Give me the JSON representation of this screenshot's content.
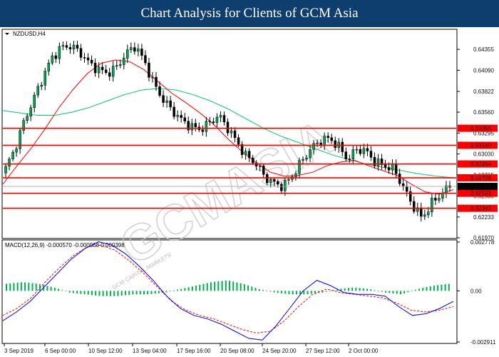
{
  "banner": {
    "title": "Chart Analysis for Clients of GCM Asia"
  },
  "watermark": "GCMASIA",
  "watermark_sub": "GCM CAPITAL MARKETS",
  "colors": {
    "banner": "#0e3e6e",
    "support_resistance": "#ff0000",
    "ma_fast": "#ff0000",
    "ma_slow": "#00cc66",
    "bull": "#00a650",
    "bear": "#000000",
    "macd_line": "#0000ff",
    "signal_line": "#ff0000",
    "histogram": "#00b050"
  },
  "chart_data": [
    {
      "type": "candlestick",
      "symbol_label": "NZDUSD,H4",
      "ylim": [
        0.6197,
        0.646
      ],
      "y_ticks": [
        "0.64355",
        "0.64090",
        "0.63822",
        "0.63560",
        "0.63295",
        "0.63030",
        "0.62765",
        "0.62500",
        "0.62233",
        "0.61970"
      ],
      "x_ticks": [
        "3 Sep 2019",
        "6 Sep 00:00",
        "10 Sep 12:00",
        "13 Sep 04:00",
        "17 Sep 16:00",
        "20 Sep 08:00",
        "24 Sep 20:00",
        "27 Sep 12:00",
        "2 Oct 00:00"
      ],
      "levels": [
        {
          "value": 0.63356,
          "label": "0.63356"
        },
        {
          "value": 0.6314,
          "label": "0.63140"
        },
        {
          "value": 0.62904,
          "label": "0.62904"
        },
        {
          "value": 0.62729,
          "label": "0.62729"
        },
        {
          "value": 0.62533,
          "label": "0.62533"
        },
        {
          "value": 0.62343,
          "label": "0.62343"
        }
      ],
      "current_price": {
        "value": 0.6262,
        "label": "0.62620"
      },
      "close_path": [
        0.6285,
        0.631,
        0.6345,
        0.6372,
        0.64,
        0.6425,
        0.6438,
        0.644,
        0.6432,
        0.6418,
        0.641,
        0.6405,
        0.6413,
        0.643,
        0.644,
        0.642,
        0.6392,
        0.6372,
        0.6358,
        0.6346,
        0.6338,
        0.6334,
        0.6342,
        0.6352,
        0.6336,
        0.6318,
        0.63,
        0.6292,
        0.6274,
        0.6266,
        0.6262,
        0.6276,
        0.6294,
        0.631,
        0.632,
        0.6323,
        0.6312,
        0.6296,
        0.631,
        0.6306,
        0.6292,
        0.6288,
        0.6283,
        0.626,
        0.6238,
        0.6222,
        0.624,
        0.6252,
        0.6262
      ],
      "ma_fast": [
        0.6265,
        0.6288,
        0.631,
        0.6335,
        0.6362,
        0.6385,
        0.6405,
        0.6418,
        0.6422,
        0.642,
        0.641,
        0.6395,
        0.638,
        0.6368,
        0.6355,
        0.634,
        0.6322,
        0.6306,
        0.6292,
        0.628,
        0.6275,
        0.6276,
        0.628,
        0.6288,
        0.6293,
        0.6295,
        0.6288,
        0.6282,
        0.6276,
        0.6265,
        0.6255,
        0.6252,
        0.6258
      ],
      "ma_slow": [
        0.6358,
        0.6355,
        0.6352,
        0.6352,
        0.6356,
        0.6362,
        0.637,
        0.6378,
        0.6384,
        0.6386,
        0.6384,
        0.6378,
        0.637,
        0.636,
        0.6348,
        0.6336,
        0.6326,
        0.6318,
        0.631,
        0.6302,
        0.6296,
        0.629,
        0.6286,
        0.6282,
        0.6278,
        0.6275,
        0.6273
      ]
    },
    {
      "type": "macd",
      "title": "MACD(12,26,9) -0.000570 -0.000968 0.000398",
      "ylim": [
        -0.002911,
        0.002778
      ],
      "y_ticks": [
        "0.002778",
        "0.00",
        "-0.002911"
      ],
      "macd": [
        -0.0017,
        -0.0012,
        -0.0006,
        0.0002,
        0.001,
        0.0018,
        0.0024,
        0.0028,
        0.0026,
        0.0021,
        0.0014,
        0.0006,
        -0.0003,
        -0.001,
        -0.0014,
        -0.0016,
        -0.0019,
        -0.0023,
        -0.0027,
        -0.0028,
        -0.002,
        -0.001,
        0.0,
        0.0006,
        0.0003,
        -0.0001,
        -0.0002,
        -0.0002,
        -0.0003,
        -0.0009,
        -0.0014,
        -0.0013,
        -0.001,
        -0.0006
      ],
      "signal": [
        -0.0014,
        -0.001,
        -0.0004,
        0.0005,
        0.0013,
        0.002,
        0.0025,
        0.0026,
        0.0023,
        0.0017,
        0.001,
        0.0002,
        -0.0006,
        -0.0011,
        -0.0014,
        -0.0016,
        -0.0019,
        -0.0022,
        -0.0024,
        -0.0023,
        -0.0017,
        -0.0009,
        -0.0002,
        0.0001,
        -0.0001,
        -0.0002,
        -0.0003,
        -0.0004,
        -0.0007,
        -0.0011,
        -0.0012,
        -0.0011,
        -0.0009
      ],
      "histogram": [
        0.0004,
        0.0005,
        0.0004,
        0.0002,
        -0.0001,
        -0.0002,
        -0.0003,
        -0.0003,
        -0.0002,
        -0.0002,
        -0.0001,
        0.0001,
        0.0003,
        0.0005,
        0.0006,
        0.0004,
        0.0001,
        -0.0001,
        -0.0002,
        -0.0002,
        -0.0001,
        0.0001,
        0.0002,
        0.0001,
        -0.0001,
        -0.0002,
        0.0001,
        0.0003,
        0.0004
      ]
    }
  ]
}
